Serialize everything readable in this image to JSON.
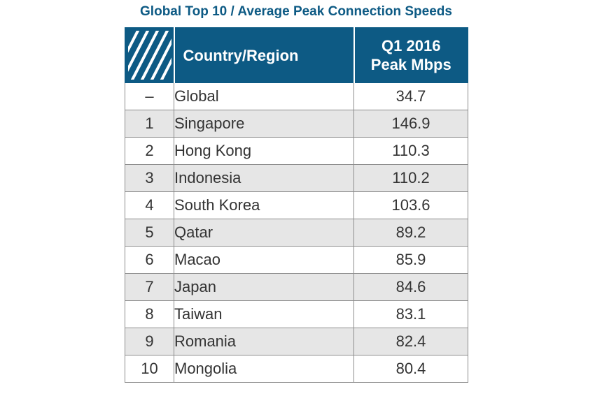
{
  "title": "Global Top 10 / Average Peak Connection Speeds",
  "colors": {
    "header_bg": "#0d5a84",
    "title": "#0d5a84",
    "alt_row": "#e6e6e6"
  },
  "chart_data": {
    "type": "table",
    "title": "Global Top 10 / Average Peak Connection Speeds",
    "columns": [
      "",
      "Country/Region",
      "Q1 2016 Peak Mbps"
    ],
    "header": {
      "country": "Country/Region",
      "speed_line1": "Q1 2016",
      "speed_line2": "Peak Mbps"
    },
    "rows": [
      {
        "rank": "–",
        "country": "Global",
        "speed": "34.7"
      },
      {
        "rank": "1",
        "country": "Singapore",
        "speed": "146.9"
      },
      {
        "rank": "2",
        "country": "Hong Kong",
        "speed": "110.3"
      },
      {
        "rank": "3",
        "country": "Indonesia",
        "speed": "110.2"
      },
      {
        "rank": "4",
        "country": "South Korea",
        "speed": "103.6"
      },
      {
        "rank": "5",
        "country": "Qatar",
        "speed": "89.2"
      },
      {
        "rank": "6",
        "country": "Macao",
        "speed": "85.9"
      },
      {
        "rank": "7",
        "country": "Japan",
        "speed": "84.6"
      },
      {
        "rank": "8",
        "country": "Taiwan",
        "speed": "83.1"
      },
      {
        "rank": "9",
        "country": "Romania",
        "speed": "82.4"
      },
      {
        "rank": "10",
        "country": "Mongolia",
        "speed": "80.4"
      }
    ]
  }
}
